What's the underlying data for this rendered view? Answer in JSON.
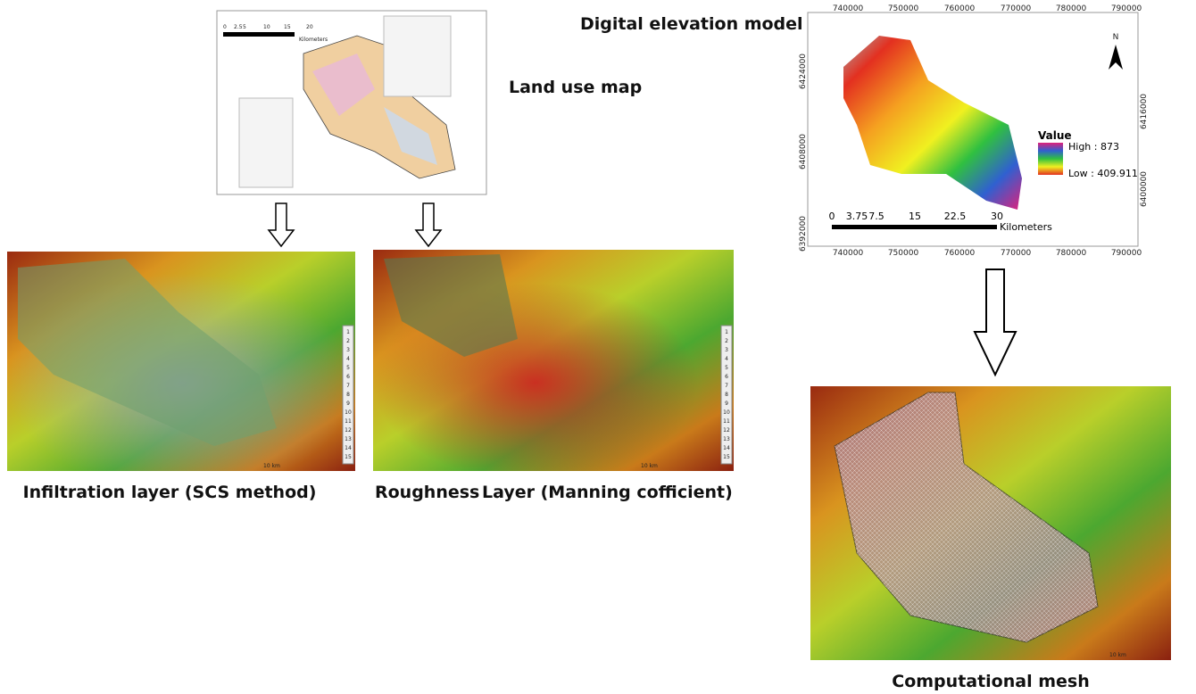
{
  "land_use": {
    "label": "Land use map",
    "scale": [
      "0",
      "2.5",
      "5",
      "10",
      "15",
      "20"
    ],
    "scale_unit": "Kilometers"
  },
  "dem": {
    "title": "Digital elevation model",
    "x_ticks": [
      "740000",
      "750000",
      "760000",
      "770000",
      "780000",
      "790000"
    ],
    "y_ticks_left": [
      "6424000",
      "6408000",
      "6392000"
    ],
    "y_ticks_right": [
      "6416000",
      "6400000"
    ],
    "north": "N",
    "legend_title": "Value",
    "high": "High : 873",
    "low": "Low : 409.911",
    "scale": [
      "0",
      "3.75",
      "7.5",
      "15",
      "22.5",
      "30"
    ],
    "scale_unit": "Kilometers"
  },
  "infiltration": {
    "label": "Infiltration layer (SCS method)",
    "scale": "10 km",
    "legend": [
      "1",
      "2",
      "3",
      "4",
      "5",
      "6",
      "7",
      "8",
      "9",
      "10",
      "11",
      "12",
      "13",
      "14",
      "15"
    ]
  },
  "roughness": {
    "label_start": "Roughness",
    "label_end": "Layer (Manning cofficient)",
    "scale": "10 km",
    "legend": [
      "1",
      "2",
      "3",
      "4",
      "5",
      "6",
      "7",
      "8",
      "9",
      "10",
      "11",
      "12",
      "13",
      "14",
      "15"
    ]
  },
  "mesh": {
    "label": "Computational mesh",
    "scale": "10 km"
  }
}
